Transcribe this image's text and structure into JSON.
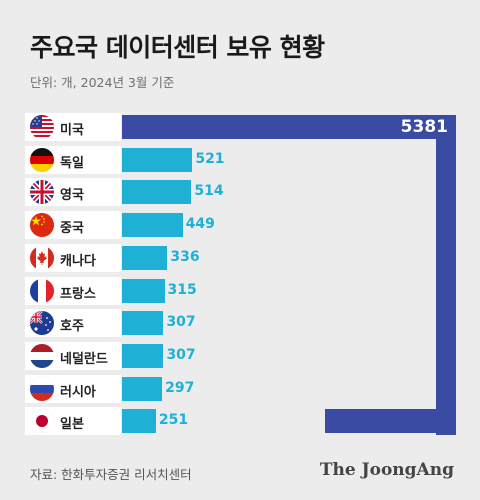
{
  "header": {
    "title": "주요국 데이터센터 보유 현황",
    "unit_note": "단위: 개, 2024년 3월 기준"
  },
  "footer": {
    "source": "자료: 한화투자증권 리서치센터",
    "brand": "The JoongAng"
  },
  "colors": {
    "bar": "#1fb0d6",
    "highlight": "#3a4ba3",
    "row_bg": "#ffffff",
    "background": "#ececec"
  },
  "chart_data": {
    "type": "bar",
    "orientation": "horizontal",
    "title": "주요국 데이터센터 보유 현황",
    "unit": "개",
    "categories": [
      "미국",
      "독일",
      "영국",
      "중국",
      "캐나다",
      "프랑스",
      "호주",
      "네덜란드",
      "러시아",
      "일본"
    ],
    "values": [
      5381,
      521,
      514,
      449,
      336,
      315,
      307,
      307,
      297,
      251
    ],
    "value_labels": [
      "5381",
      "521",
      "514",
      "449",
      "336",
      "315",
      "307",
      "307",
      "297",
      "251"
    ],
    "flags": [
      "us-flag-icon",
      "germany-flag-icon",
      "uk-flag-icon",
      "china-flag-icon",
      "canada-flag-icon",
      "france-flag-icon",
      "australia-flag-icon",
      "netherlands-flag-icon",
      "russia-flag-icon",
      "japan-flag-icon"
    ],
    "highlight": "미국",
    "axis_break": true
  }
}
